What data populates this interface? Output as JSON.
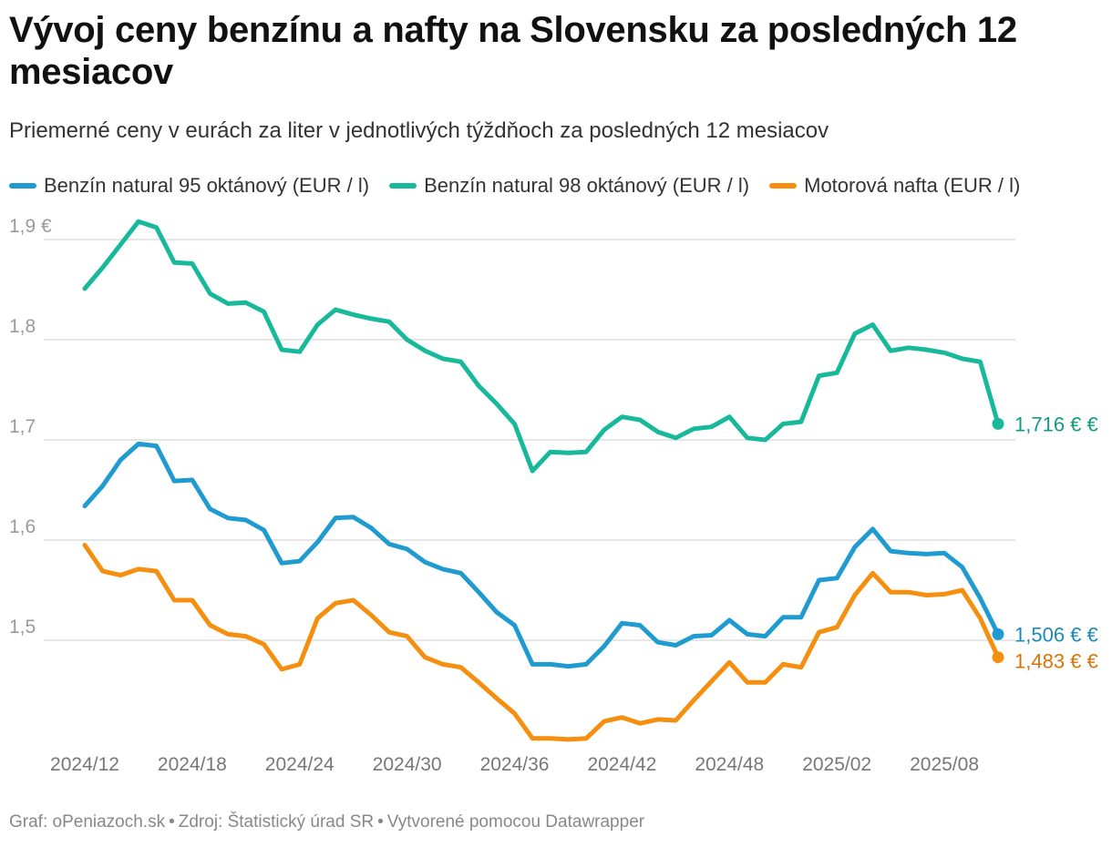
{
  "title": "Vývoj ceny benzínu a nafty na Slovensku za posledných 12 mesiacov",
  "subtitle": "Priemerné ceny v eurách za liter v jednotlivých týždňoch za posledných 12 mesiacov",
  "footer": {
    "graph": "Graf: oPeniazoch.sk",
    "source": "Zdroj: Štatistický úrad SR",
    "tool": "Vytvorené pomocou Datawrapper"
  },
  "chart_data": {
    "type": "line",
    "x_labels": [
      "2024/12",
      "2024/18",
      "2024/24",
      "2024/30",
      "2024/36",
      "2024/42",
      "2024/48",
      "2025/02",
      "2025/08"
    ],
    "y_ticks": [
      "1,9 €",
      "1,8",
      "1,7",
      "1,6",
      "1,5"
    ],
    "y_tick_values": [
      1.9,
      1.8,
      1.7,
      1.6,
      1.5
    ],
    "ylim": [
      1.4,
      1.93
    ],
    "grid": true,
    "legend_position": "top",
    "series": [
      {
        "name": "Benzín natural 95 oktánový (EUR / l)",
        "color": "#1f9bcf",
        "end_label": "1,506 € €",
        "values": [
          1.634,
          1.654,
          1.68,
          1.696,
          1.694,
          1.659,
          1.66,
          1.631,
          1.622,
          1.62,
          1.61,
          1.577,
          1.579,
          1.598,
          1.622,
          1.623,
          1.612,
          1.596,
          1.591,
          1.578,
          1.571,
          1.567,
          1.548,
          1.528,
          1.515,
          1.476,
          1.476,
          1.474,
          1.476,
          1.494,
          1.517,
          1.515,
          1.498,
          1.495,
          1.504,
          1.505,
          1.52,
          1.506,
          1.504,
          1.523,
          1.523,
          1.56,
          1.562,
          1.593,
          1.611,
          1.589,
          1.587,
          1.586,
          1.587,
          1.573,
          1.542,
          1.506
        ]
      },
      {
        "name": "Benzín natural 98 oktánový (EUR / l)",
        "color": "#18b99a",
        "end_label": "1,716 € €",
        "values": [
          1.851,
          1.872,
          1.895,
          1.918,
          1.912,
          1.877,
          1.876,
          1.846,
          1.836,
          1.837,
          1.828,
          1.79,
          1.788,
          1.815,
          1.83,
          1.825,
          1.821,
          1.818,
          1.8,
          1.789,
          1.781,
          1.778,
          1.754,
          1.736,
          1.716,
          1.669,
          1.688,
          1.687,
          1.688,
          1.71,
          1.723,
          1.72,
          1.708,
          1.702,
          1.711,
          1.713,
          1.723,
          1.702,
          1.7,
          1.716,
          1.718,
          1.764,
          1.767,
          1.806,
          1.815,
          1.789,
          1.792,
          1.79,
          1.787,
          1.781,
          1.778,
          1.716
        ]
      },
      {
        "name": "Motorová nafta (EUR / l)",
        "color": "#f58f0f",
        "end_label": "1,483 € €",
        "values": [
          1.595,
          1.569,
          1.565,
          1.571,
          1.569,
          1.54,
          1.54,
          1.515,
          1.506,
          1.504,
          1.496,
          1.471,
          1.476,
          1.522,
          1.537,
          1.54,
          1.525,
          1.508,
          1.504,
          1.483,
          1.476,
          1.473,
          1.458,
          1.442,
          1.427,
          1.402,
          1.402,
          1.401,
          1.402,
          1.419,
          1.423,
          1.417,
          1.421,
          1.42,
          1.44,
          1.459,
          1.478,
          1.458,
          1.458,
          1.476,
          1.473,
          1.508,
          1.513,
          1.545,
          1.567,
          1.548,
          1.548,
          1.545,
          1.546,
          1.55,
          1.522,
          1.483
        ]
      }
    ]
  }
}
